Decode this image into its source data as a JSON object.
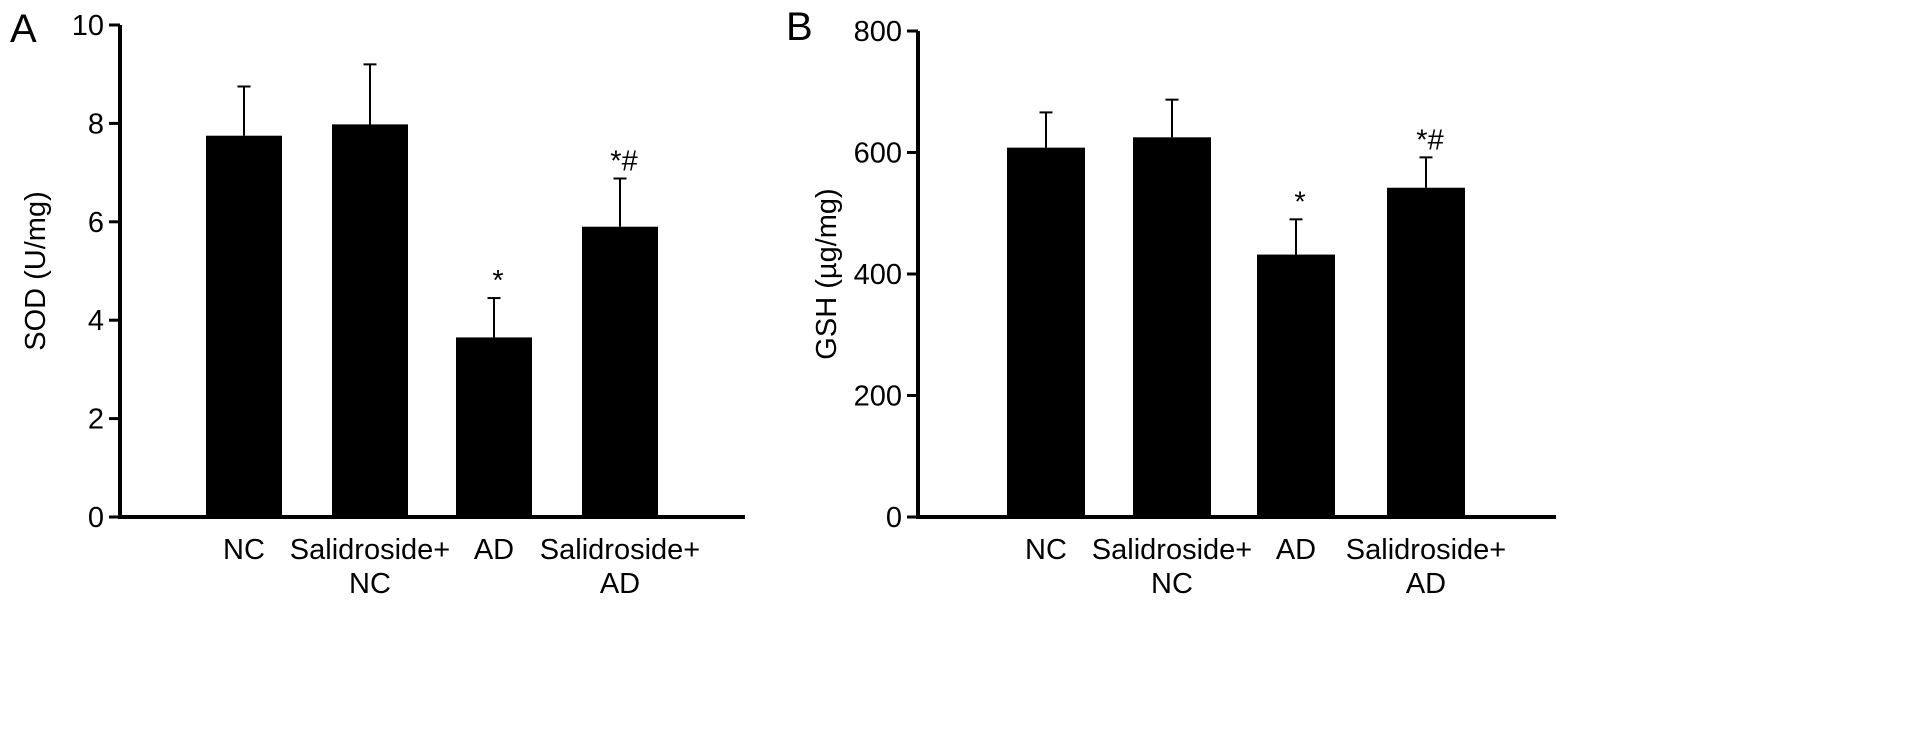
{
  "chart_data": [
    {
      "type": "bar",
      "panel_label": "A",
      "title": "",
      "xlabel": "",
      "ylabel": "SOD (U/mg)",
      "ylim": [
        0,
        10
      ],
      "yticks": [
        "0",
        "2",
        "4",
        "6",
        "8",
        "10"
      ],
      "categories": [
        {
          "line1": "NC",
          "line2": ""
        },
        {
          "line1": "Salidroside+",
          "line2": "NC"
        },
        {
          "line1": "AD",
          "line2": ""
        },
        {
          "line1": "Salidroside+",
          "line2": "AD"
        }
      ],
      "values": [
        7.75,
        7.98,
        3.65,
        5.9
      ],
      "errors": [
        1.0,
        1.22,
        0.8,
        0.98
      ],
      "annotations": [
        "",
        "",
        "*",
        "*#"
      ],
      "bar_color": "#000000",
      "grid": false,
      "legend": "none"
    },
    {
      "type": "bar",
      "panel_label": "B",
      "title": "",
      "xlabel": "",
      "ylabel": "GSH (µg/mg)",
      "ylim": [
        0,
        800
      ],
      "yticks": [
        "0",
        "200",
        "400",
        "600",
        "800"
      ],
      "categories": [
        {
          "line1": "NC",
          "line2": ""
        },
        {
          "line1": "Salidroside+",
          "line2": "NC"
        },
        {
          "line1": "AD",
          "line2": ""
        },
        {
          "line1": "Salidroside+",
          "line2": "AD"
        }
      ],
      "values": [
        608,
        625,
        432,
        542
      ],
      "errors": [
        58,
        62,
        58,
        50
      ],
      "annotations": [
        "",
        "",
        "*",
        "*#"
      ],
      "bar_color": "#000000",
      "grid": false,
      "legend": "none"
    }
  ]
}
